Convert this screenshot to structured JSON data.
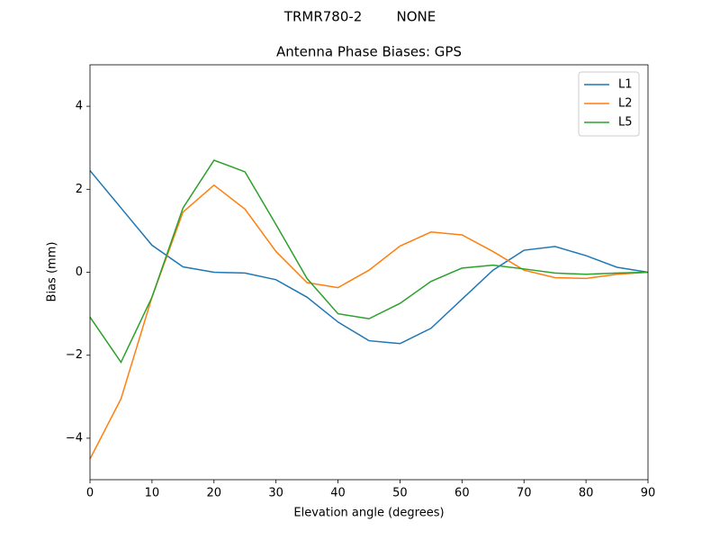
{
  "chart_data": {
    "type": "line",
    "suptitle": "TRMR780-2        NONE",
    "title": "Antenna Phase Biases: GPS",
    "x_label": "Elevation angle (degrees)",
    "y_label": "Bias (mm)",
    "x": [
      0,
      5,
      10,
      15,
      20,
      25,
      30,
      35,
      40,
      45,
      50,
      55,
      60,
      65,
      70,
      75,
      80,
      85,
      90
    ],
    "series": [
      {
        "name": "L1",
        "color": "#1f77b4",
        "values": [
          2.45,
          1.55,
          0.65,
          0.13,
          0.0,
          -0.02,
          -0.18,
          -0.6,
          -1.2,
          -1.65,
          -1.72,
          -1.35,
          -0.65,
          0.05,
          0.53,
          0.62,
          0.4,
          0.12,
          0.0
        ]
      },
      {
        "name": "L2",
        "color": "#ff7f0e",
        "values": [
          -4.5,
          -3.05,
          -0.6,
          1.45,
          2.1,
          1.52,
          0.5,
          -0.25,
          -0.37,
          0.05,
          0.63,
          0.97,
          0.9,
          0.5,
          0.05,
          -0.13,
          -0.15,
          -0.05,
          0.0
        ]
      },
      {
        "name": "L5",
        "color": "#2ca02c",
        "values": [
          -1.08,
          -2.17,
          -0.6,
          1.55,
          2.7,
          2.42,
          1.15,
          -0.15,
          -1.0,
          -1.12,
          -0.75,
          -0.22,
          0.1,
          0.17,
          0.08,
          -0.02,
          -0.05,
          -0.02,
          0.0
        ]
      }
    ],
    "xlim": [
      0,
      90
    ],
    "ylim": [
      -5,
      5
    ],
    "xticks": [
      0,
      10,
      20,
      30,
      40,
      50,
      60,
      70,
      80,
      90
    ],
    "yticks": [
      {
        "value": -4,
        "label": "−4"
      },
      {
        "value": -2,
        "label": "−2"
      },
      0,
      2,
      4
    ],
    "legend": "upper right",
    "grid": false
  }
}
